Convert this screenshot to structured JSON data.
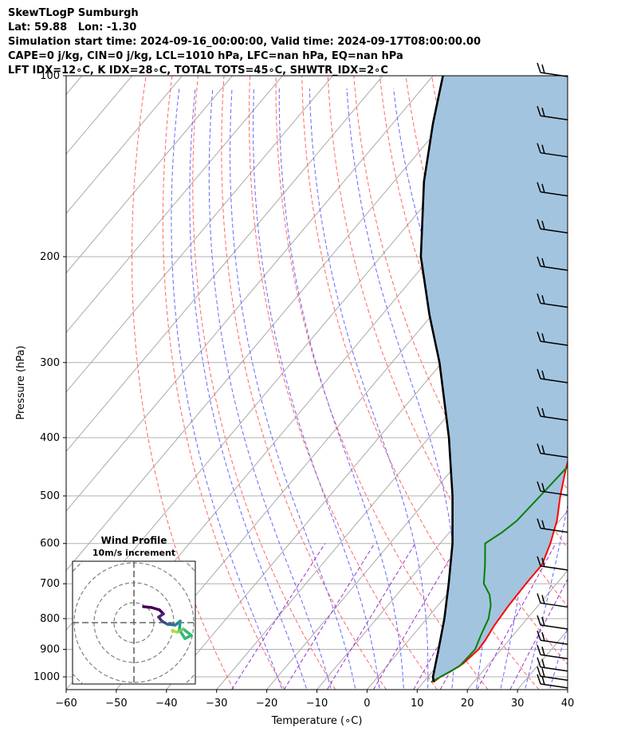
{
  "header": {
    "line1": "SkewTLogP Sumburgh",
    "line2": "Lat: 59.88   Lon: -1.30",
    "line3": "Simulation start time: 2024-09-16_00:00:00, Valid time: 2024-09-17T08:00:00.00",
    "line4": "CAPE=0 j/kg, CIN=0 j/kg, LCL=1010 hPa, LFC=nan hPa, EQ=nan hPa",
    "line5": "LFT IDX=12∘C, K IDX=28∘C, TOTAL TOTS=45∘C, SHWTR_IDX=2∘C"
  },
  "chart_data": {
    "type": "line",
    "xlabel": "Temperature (∘C)",
    "ylabel": "Pressure (hPa)",
    "xlim": [
      -60,
      40
    ],
    "ylim": [
      1050,
      100
    ],
    "yscale": "log",
    "x_ticks": [
      -60,
      -50,
      -40,
      -30,
      -20,
      -10,
      0,
      10,
      20,
      30,
      40
    ],
    "x_tick_labels": [
      "−60",
      "−50",
      "−40",
      "−30",
      "−20",
      "−10",
      "0",
      "10",
      "20",
      "30",
      "40"
    ],
    "y_ticks": [
      100,
      200,
      300,
      400,
      500,
      600,
      700,
      800,
      900,
      1000
    ],
    "y_tick_labels": [
      "100",
      "200",
      "300",
      "400",
      "500",
      "600",
      "700",
      "800",
      "900",
      "1000"
    ],
    "grid": true,
    "skew_degC_per_decade_logp": 101,
    "colors": {
      "temperature": "#ff0000",
      "dewpoint": "#008000",
      "parcel": "#000000",
      "cape_fill": "#a3c4de",
      "dry_adiabat": "#ff6666",
      "moist_adiabat": "#6666ff",
      "mixing_ratio": "#9933cc",
      "isotherm": "#aaaaaa"
    },
    "series": [
      {
        "p": [
          1020,
          1000,
          980,
          950,
          900,
          870,
          820,
          760,
          700,
          650,
          600,
          550,
          500,
          450,
          400,
          380,
          350,
          330,
          300,
          280,
          250,
          230,
          200,
          185,
          165,
          150,
          130,
          115,
          105,
          100
        ],
        "t": [
          12,
          12.5,
          13.6,
          14.8,
          15.5,
          15.3,
          14.6,
          14.1,
          13.9,
          13.9,
          12.0,
          9.5,
          6.0,
          2.5,
          -1.0,
          -2.0,
          -2.3,
          -2.5,
          -5.5,
          -8.5,
          -10.5,
          -11.5,
          -14.5,
          -16.5,
          -15.0,
          -14.5,
          -12.0,
          -9.5,
          -7.5,
          -5.5
        ]
      },
      {
        "p": [
          1020,
          1000,
          960,
          900,
          850,
          800,
          760,
          730,
          700,
          650,
          600,
          575,
          550,
          500,
          450,
          420,
          400,
          350,
          300,
          280,
          260,
          235,
          210,
          200,
          180,
          160,
          150,
          130,
          115,
          100
        ],
        "t": [
          11.5,
          12.5,
          14.5,
          14.8,
          13.5,
          12.3,
          10.5,
          8.5,
          5.5,
          2.5,
          -1.0,
          0.5,
          1.5,
          2.0,
          2.5,
          3.2,
          2.5,
          -0.5,
          -6.0,
          -9.0,
          -11.5,
          -13.0,
          -12.5,
          -14.5,
          -14.8,
          -15.5,
          -14.5,
          -13.5,
          -13.0,
          -10.5
        ]
      },
      {
        "p": [
          1020,
          1000,
          900,
          800,
          700,
          600,
          500,
          400,
          300,
          250,
          200,
          150,
          120,
          100
        ],
        "t": [
          12.0,
          11.0,
          7.5,
          3.5,
          -1.5,
          -7.5,
          -15.5,
          -26.0,
          -40.5,
          -50.5,
          -62.0,
          -74.0,
          -82.0,
          -88.0
        ]
      }
    ],
    "wind_barbs": {
      "p": [
        100,
        118,
        136,
        158,
        182,
        210,
        242,
        280,
        323,
        373,
        430,
        497,
        573,
        662,
        763,
        830,
        880,
        930,
        975,
        1010,
        1040
      ]
    },
    "inset": {
      "title": "Wind Profile",
      "subtitle": "10m/s increment"
    }
  }
}
